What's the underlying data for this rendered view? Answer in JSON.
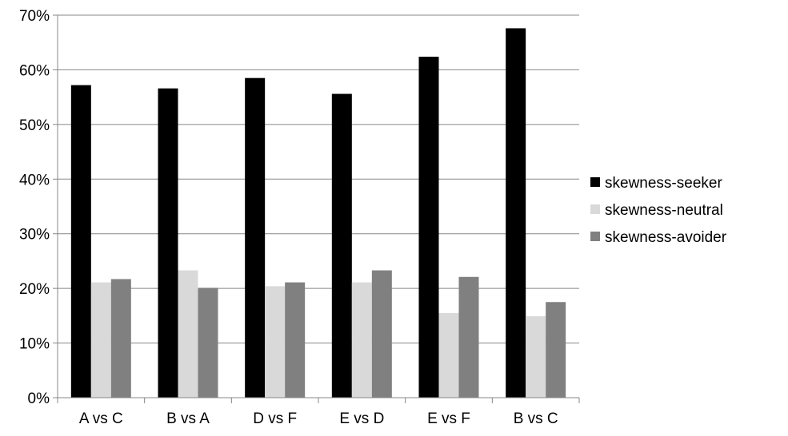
{
  "chart_data": {
    "type": "bar",
    "categories": [
      "A vs C",
      "B vs A",
      "D vs F",
      "E vs D",
      "E vs F",
      "B vs C"
    ],
    "series": [
      {
        "name": "skewness-seeker",
        "values": [
          57.2,
          56.6,
          58.5,
          55.6,
          62.4,
          67.6
        ]
      },
      {
        "name": "skewness-neutral",
        "values": [
          21.1,
          23.3,
          20.4,
          21.1,
          15.5,
          14.9
        ]
      },
      {
        "name": "skewness-avoider",
        "values": [
          21.7,
          20.1,
          21.1,
          23.3,
          22.1,
          17.5
        ]
      }
    ],
    "colors": [
      "#000000",
      "#d9d9d9",
      "#808080"
    ],
    "ylim": [
      0,
      70
    ],
    "yticks": [
      0,
      10,
      20,
      30,
      40,
      50,
      60,
      70
    ],
    "ytick_format": "percent",
    "grid": true,
    "legend": "right",
    "title": "",
    "xlabel": "",
    "ylabel": ""
  }
}
